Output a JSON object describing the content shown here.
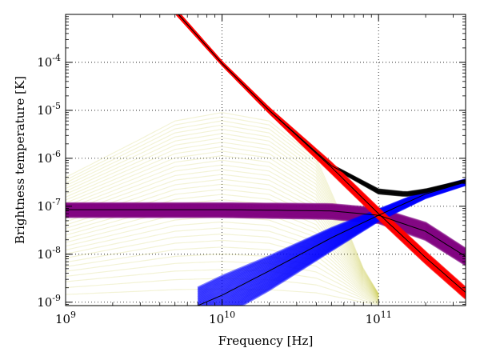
{
  "chart_data": {
    "type": "line",
    "xlabel": "Frequency [Hz]",
    "ylabel": "Brightness temperature [K]",
    "x_scale": "log",
    "y_scale": "log",
    "xlim": [
      1000000000.0,
      360000000000.0
    ],
    "ylim": [
      8.5e-10,
      0.001
    ],
    "grid": true,
    "x_ticks": [
      {
        "value": 1000000000.0,
        "base": "10",
        "exp": "9"
      },
      {
        "value": 10000000000.0,
        "base": "10",
        "exp": "10"
      },
      {
        "value": 100000000000.0,
        "base": "10",
        "exp": "11"
      }
    ],
    "y_ticks": [
      {
        "value": 1e-09,
        "base": "10",
        "exp": "-9"
      },
      {
        "value": 1e-08,
        "base": "10",
        "exp": "-8"
      },
      {
        "value": 1e-07,
        "base": "10",
        "exp": "-7"
      },
      {
        "value": 1e-06,
        "base": "10",
        "exp": "-6"
      },
      {
        "value": 1e-05,
        "base": "10",
        "exp": "-5"
      },
      {
        "value": 0.0001,
        "base": "10",
        "exp": "-4"
      }
    ],
    "series": [
      {
        "color": "#ff0000",
        "style": "band",
        "x": [
          5000000000.0,
          10000000000.0,
          20000000000.0,
          50000000000.0,
          100000000000.0,
          200000000000.0,
          360000000000.0
        ],
        "y": [
          0.0012,
          9.5e-05,
          1e-05,
          6.5e-07,
          7e-08,
          8.5e-09,
          1.6e-09
        ],
        "lo": [
          0.0011,
          9e-05,
          9e-06,
          5e-07,
          5.5e-08,
          6.5e-09,
          1.2e-09
        ],
        "hi": [
          0.0013,
          0.0001,
          1.1e-05,
          8e-07,
          9e-08,
          1.1e-08,
          2e-09
        ]
      },
      {
        "color": "#0000ff",
        "style": "band",
        "x": [
          7000000000.0,
          10000000000.0,
          20000000000.0,
          50000000000.0,
          100000000000.0,
          200000000000.0,
          360000000000.0
        ],
        "y": [
          8.5e-10,
          1.4e-09,
          4.5e-09,
          2.2e-08,
          6.5e-08,
          1.8e-07,
          3.2e-07
        ],
        "lo": [
          3e-10,
          5e-10,
          1.8e-09,
          1.2e-08,
          5e-08,
          1.5e-07,
          2.8e-07
        ],
        "hi": [
          2e-09,
          3.5e-09,
          9e-09,
          3.5e-08,
          8.5e-08,
          2.1e-07,
          3.6e-07
        ]
      },
      {
        "color": "#800080",
        "style": "band",
        "x": [
          1000000000.0,
          10000000000.0,
          50000000000.0,
          100000000000.0,
          200000000000.0,
          360000000000.0
        ],
        "y": [
          8.5e-08,
          8.5e-08,
          8e-08,
          6.5e-08,
          3e-08,
          9e-09
        ],
        "lo": [
          6e-08,
          6e-08,
          5.5e-08,
          4.5e-08,
          2e-08,
          6e-09
        ],
        "hi": [
          1.15e-07,
          1.15e-07,
          1.1e-07,
          9e-08,
          4.5e-08,
          1.3e-08
        ]
      },
      {
        "color": "#000000",
        "style": "band",
        "x": [
          5000000000.0,
          10000000000.0,
          20000000000.0,
          50000000000.0,
          100000000000.0,
          150000000000.0,
          200000000000.0,
          360000000000.0
        ],
        "y": [
          0.0012,
          9.5e-05,
          1e-05,
          7e-07,
          2e-07,
          1.8e-07,
          2.1e-07,
          3.4e-07
        ],
        "lo": [
          0.0011,
          9e-05,
          9e-06,
          6.5e-07,
          1.8e-07,
          1.6e-07,
          1.9e-07,
          3.2e-07
        ],
        "hi": [
          0.0013,
          0.0001,
          1.1e-05,
          7.5e-07,
          2.3e-07,
          2e-07,
          2.3e-07,
          3.6e-07
        ]
      },
      {
        "color": "#bdbd1e",
        "style": "cloud",
        "x": [
          1000000000.0,
          3000000000.0,
          5000000000.0,
          10000000000.0,
          20000000000.0,
          40000000000.0,
          60000000000.0,
          80000000000.0,
          100000000000.0
        ],
        "y": [
          4e-09,
          1e-08,
          3e-08,
          2e-07,
          3e-07,
          8e-08,
          5e-09,
          1e-09,
          8.5e-10
        ],
        "lo": [
          8.5e-10,
          8.5e-10,
          8.5e-10,
          8.5e-10,
          8.5e-10,
          8.5e-10,
          8.5e-10,
          8.5e-10,
          8.5e-10
        ],
        "hi": [
          4e-07,
          2.5e-06,
          6e-06,
          9e-06,
          6e-06,
          1e-06,
          5e-08,
          5e-09,
          1.5e-09
        ]
      }
    ],
    "black_lines": [
      {
        "x": [
          5000000000.0,
          10000000000.0,
          20000000000.0,
          50000000000.0,
          100000000000.0,
          200000000000.0,
          360000000000.0
        ],
        "y": [
          0.0012,
          9.5e-05,
          1e-05,
          6.5e-07,
          7e-08,
          8.5e-09,
          1.6e-09
        ]
      },
      {
        "x": [
          7000000000.0,
          10000000000.0,
          20000000000.0,
          50000000000.0,
          100000000000.0,
          200000000000.0,
          360000000000.0
        ],
        "y": [
          8.5e-10,
          1.4e-09,
          4.5e-09,
          2.2e-08,
          6.5e-08,
          1.8e-07,
          3.2e-07
        ]
      },
      {
        "x": [
          1000000000.0,
          10000000000.0,
          50000000000.0,
          100000000000.0,
          200000000000.0,
          360000000000.0
        ],
        "y": [
          8.5e-08,
          8.5e-08,
          8e-08,
          6.5e-08,
          3e-08,
          9e-09
        ]
      },
      {
        "x": [
          5000000000.0,
          10000000000.0,
          20000000000.0,
          50000000000.0,
          100000000000.0,
          150000000000.0,
          200000000000.0,
          360000000000.0
        ],
        "y": [
          0.0012,
          9.5e-05,
          1e-05,
          7e-07,
          2e-07,
          1.8e-07,
          2.1e-07,
          3.4e-07
        ]
      }
    ]
  }
}
